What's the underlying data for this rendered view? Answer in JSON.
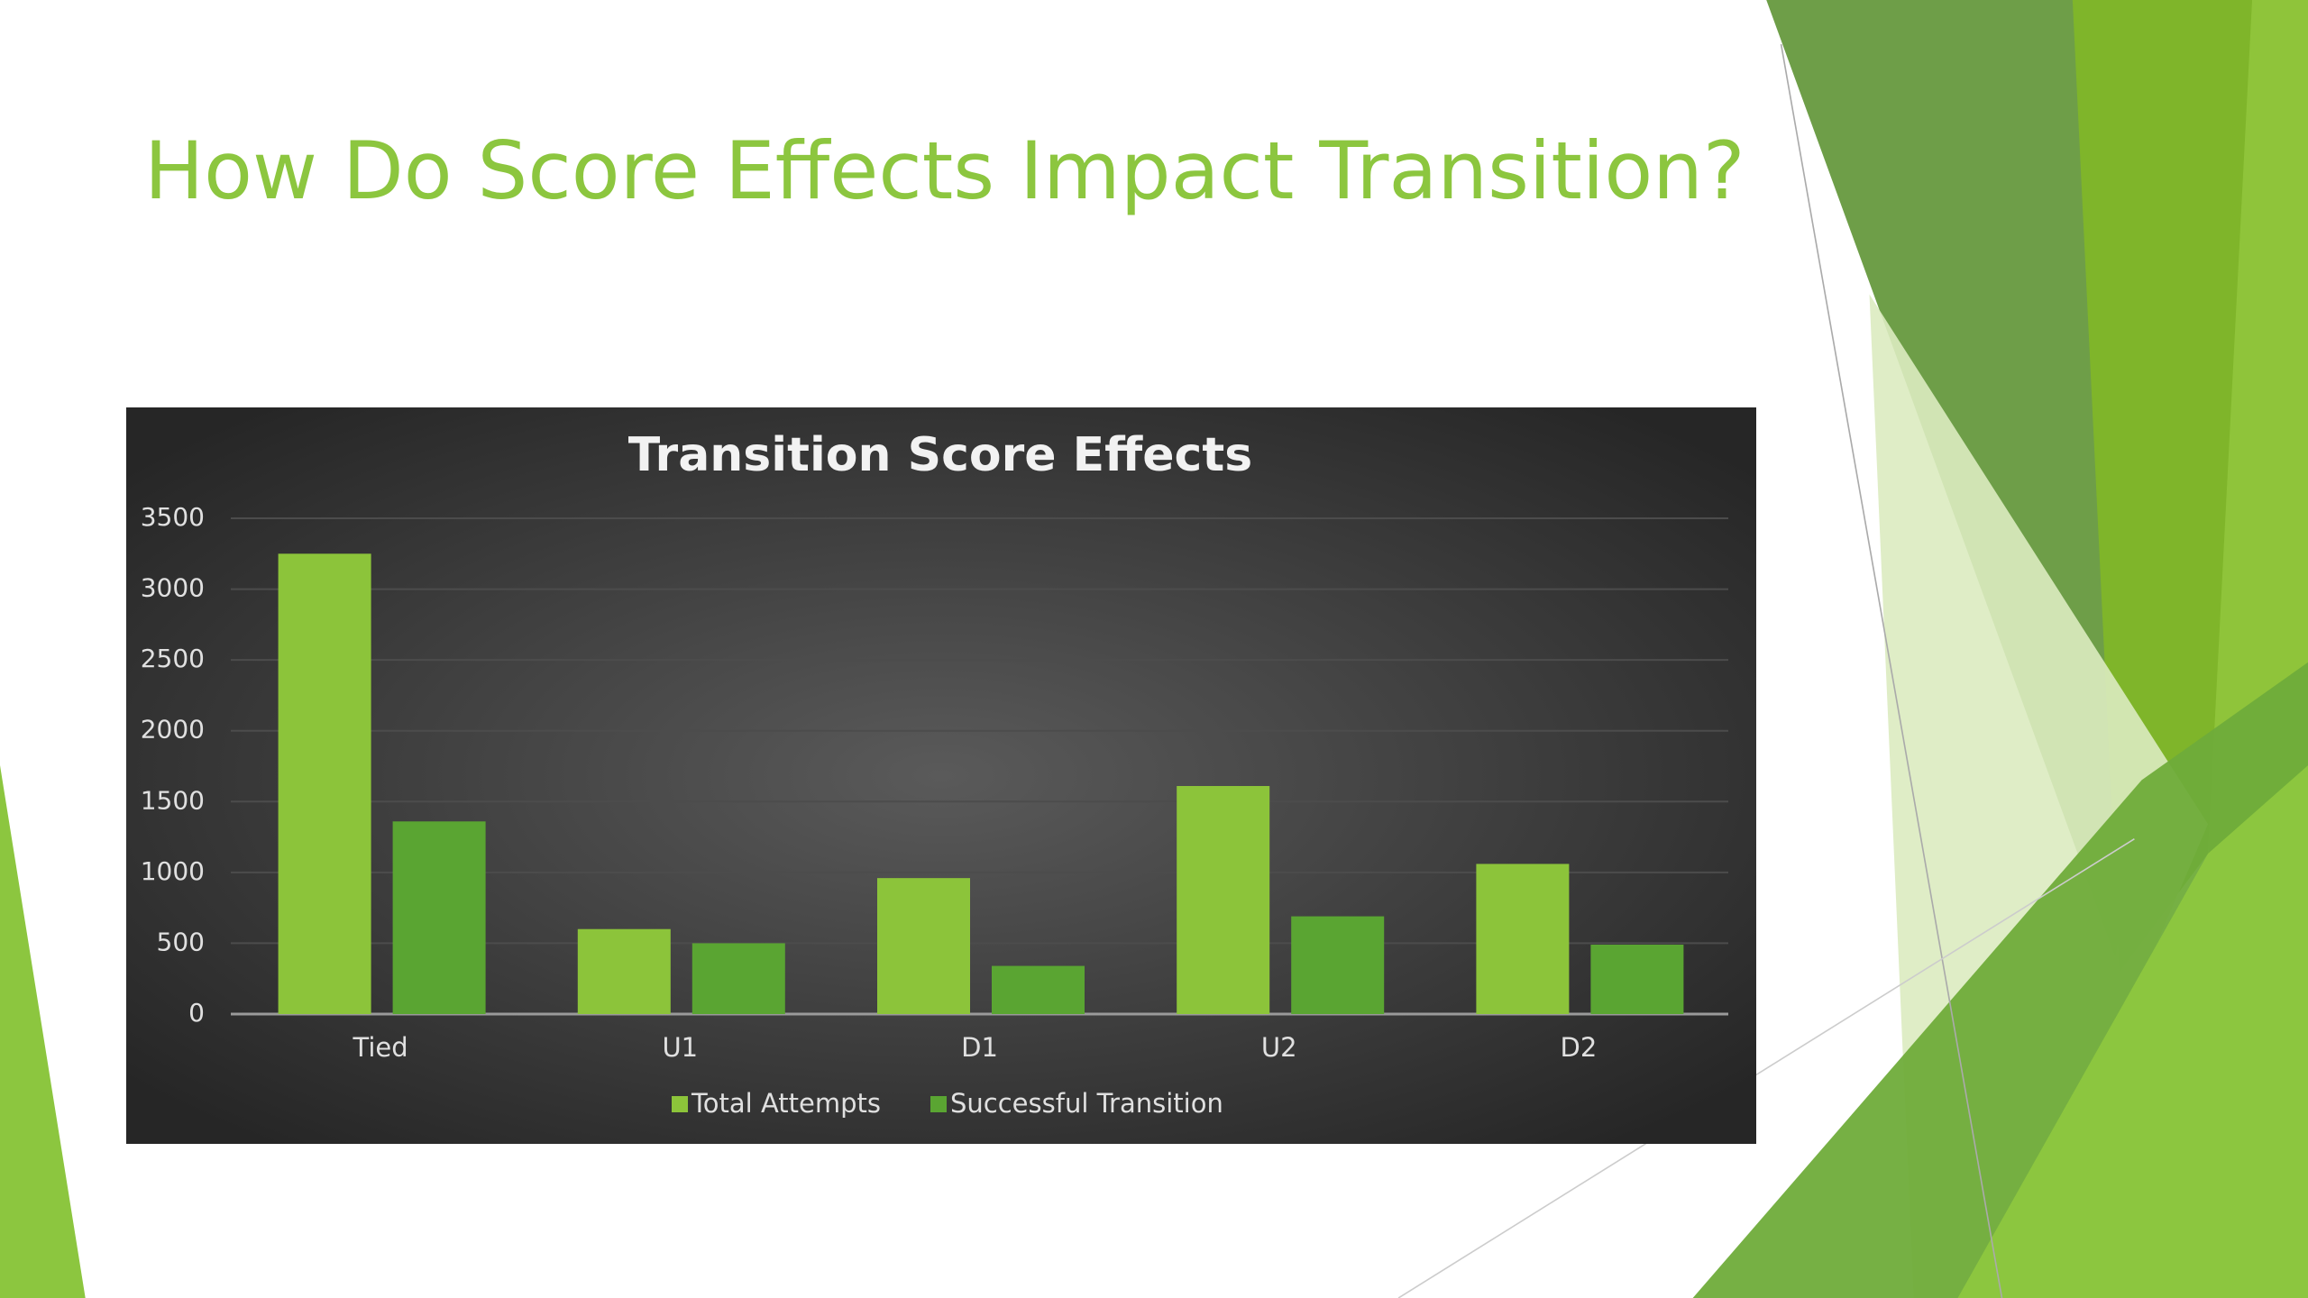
{
  "slide_title": "How Do Score Effects Impact Transition?",
  "chart_data": {
    "type": "bar",
    "title": "Transition Score Effects",
    "categories": [
      "Tied",
      "U1",
      "D1",
      "U2",
      "D2"
    ],
    "series": [
      {
        "name": "Total Attempts",
        "color": "#8cc43a",
        "values": [
          3250,
          600,
          960,
          1610,
          1060
        ]
      },
      {
        "name": "Successful Transition",
        "color": "#5aa532",
        "values": [
          1360,
          500,
          340,
          690,
          490
        ]
      }
    ],
    "ylim": [
      0,
      3500
    ],
    "yticks": [
      0,
      500,
      1000,
      1500,
      2000,
      2500,
      3000,
      3500
    ],
    "grid": true,
    "legend": "bottom"
  }
}
